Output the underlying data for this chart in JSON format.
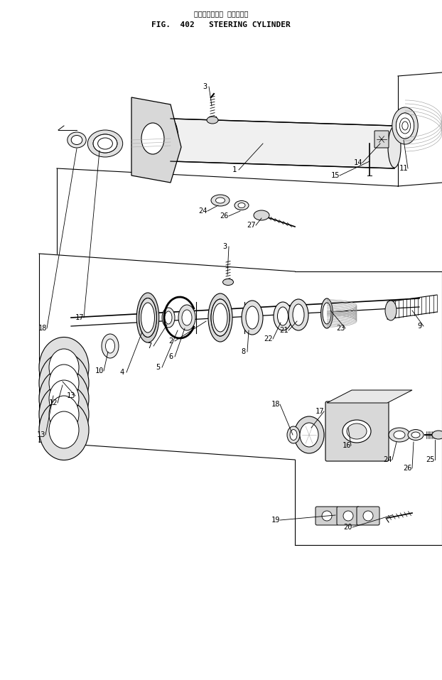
{
  "title_jp": "ステアリング・ シリンダ・",
  "title_en": "FIG.  402   STEERING CYLINDER",
  "bg_color": "#ffffff",
  "line_color": "#000000",
  "fig_width": 6.22,
  "fig_height": 9.57,
  "dpi": 100,
  "font_size_title_jp": 7,
  "font_size_title_en": 8,
  "font_size_label": 7.5,
  "font_family": "monospace"
}
